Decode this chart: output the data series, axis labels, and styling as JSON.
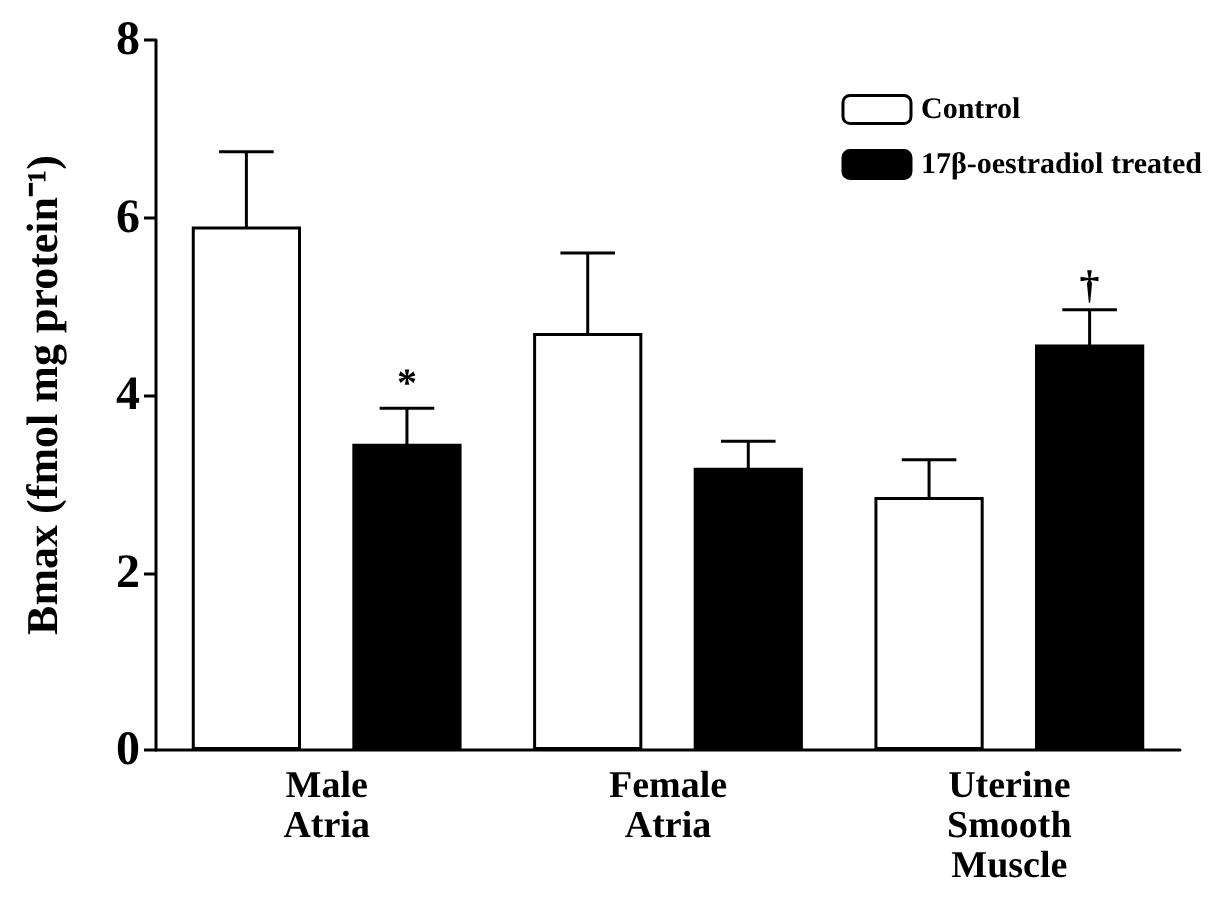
{
  "chart_data": {
    "type": "bar",
    "ylabel": "Bmax (fmol mg protein⁻¹)",
    "categories": [
      "Male\nAtria",
      "Female\nAtria",
      "Uterine\nSmooth\nMuscle"
    ],
    "series": [
      {
        "name": "Control",
        "color": "#ffffff",
        "values": [
          5.9,
          4.7,
          2.85
        ],
        "errors": [
          0.84,
          0.9,
          0.42
        ]
      },
      {
        "name": "17β-oestradiol treated",
        "color": "#000000",
        "values": [
          3.45,
          3.18,
          4.57
        ],
        "errors": [
          0.4,
          0.3,
          0.39
        ]
      }
    ],
    "annotations": [
      "*",
      "†"
    ],
    "ylim": [
      0,
      8
    ],
    "yticks": [
      0,
      2,
      4,
      6,
      8
    ],
    "grid": false,
    "legend": "top right"
  }
}
